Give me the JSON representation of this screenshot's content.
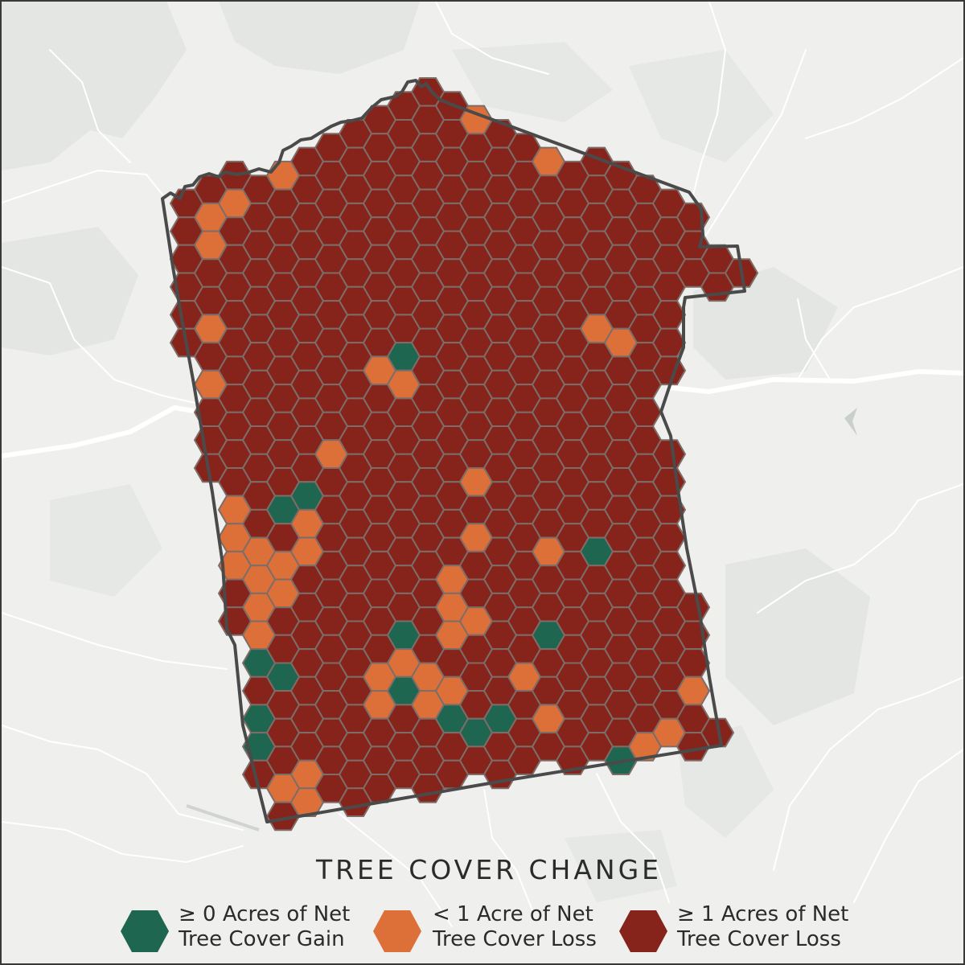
{
  "title": "TREE COVER CHANGE",
  "colors": {
    "background": "#efefee",
    "land_patch": "#e3e6e3",
    "road": "#ffffff",
    "border": "#4a4a4a",
    "hex_outline": "#7d6d68",
    "gain": "#1e6650",
    "small_loss": "#dd7038",
    "large_loss": "#86241b"
  },
  "legend": [
    {
      "category": "gain",
      "line1": "≥ 0 Acres of Net",
      "line2": "Tree Cover Gain",
      "color": "#1e6650"
    },
    {
      "category": "small_loss",
      "line1": "< 1 Acre of Net",
      "line2": "Tree Cover Loss",
      "color": "#dd7038"
    },
    {
      "category": "large_loss",
      "line1": "≥ 1 Acres of Net",
      "line2": "Tree Cover Loss",
      "color": "#86241b"
    }
  ],
  "hex_categories": {
    "gain": [
      "4,2",
      "5,2",
      "4,1",
      "10,10",
      "5,15",
      "6,15",
      "18,17",
      "10,20",
      "16,20",
      "4,21",
      "5,21",
      "10,22",
      "4,23",
      "13,23",
      "12,23",
      "14,23",
      "19,24",
      "4,24",
      "4,26",
      "5,27",
      "22,25"
    ],
    "small_loss": [
      "13,1",
      "14,1",
      "16,2",
      "17,2",
      "16,3",
      "5,3",
      "3,4",
      "2,5",
      "2,6",
      "2,9",
      "19,9",
      "18,9",
      "9,10",
      "1,11",
      "2,11",
      "10,11",
      "7,13",
      "13,14",
      "3,15",
      "5,15",
      "13,16",
      "16,17",
      "18,17",
      "4,17",
      "6,17",
      "3,17",
      "5,17",
      "4,18",
      "5,18",
      "12,18",
      "4,19",
      "12,19",
      "13,19",
      "12,20",
      "4,20",
      "3,21",
      "15,21",
      "9,21",
      "10,21",
      "11,21",
      "9,22",
      "10,22",
      "11,22",
      "16,23",
      "12,22",
      "22,22",
      "21,23",
      "20,24",
      "21,24",
      "4,24",
      "5,25",
      "6,25",
      "4,26",
      "6,26",
      "9,26",
      "10,26",
      "15,26",
      "16,26",
      "21,25",
      "20,25",
      "4,27",
      "6,27",
      "7,27",
      "10,27",
      "11,27",
      "4,28",
      "5,28",
      "11,28",
      "12,28",
      "3,15",
      "6,16",
      "3,16",
      "23,21",
      "23,15"
    ]
  }
}
